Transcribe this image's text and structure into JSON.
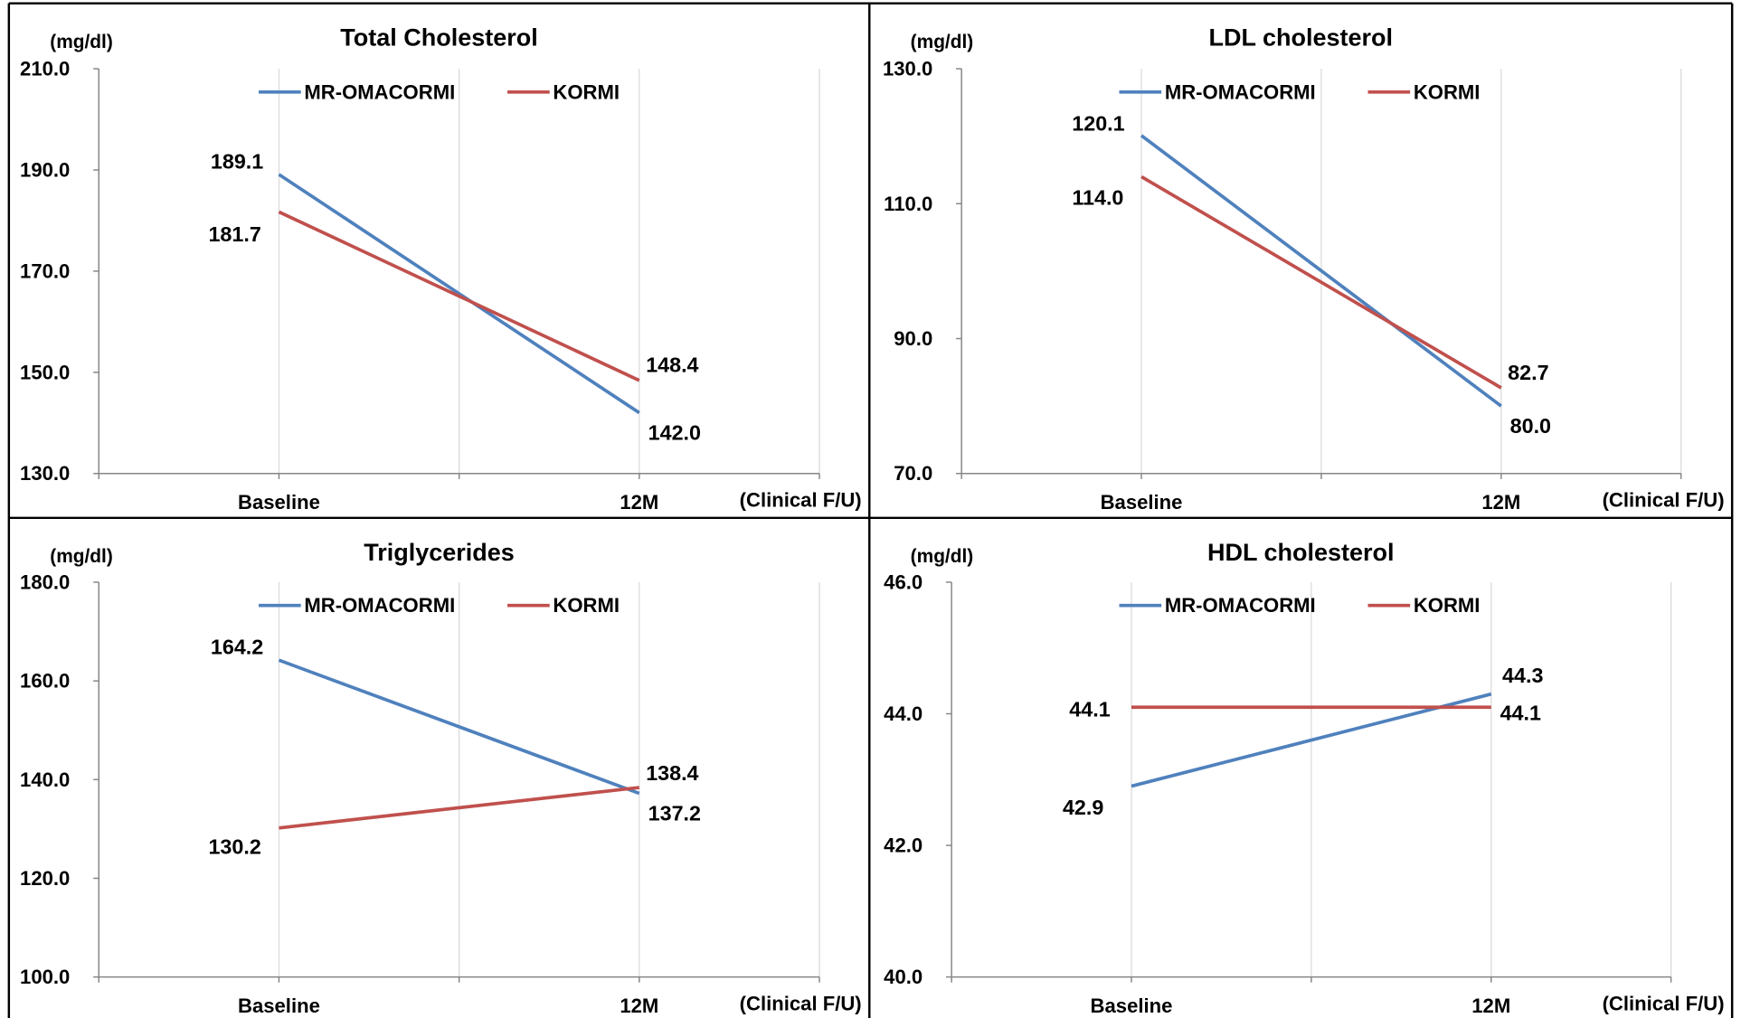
{
  "chart_data": [
    {
      "type": "line",
      "title": "Total Cholesterol",
      "ylabel": "(mg/dl)",
      "xlabel": "(Clinical F/U)",
      "categories": [
        "Baseline",
        "12M"
      ],
      "ylim": [
        130,
        210
      ],
      "yticks": [
        "210.0",
        "190.0",
        "170.0",
        "150.0",
        "130.0"
      ],
      "legend": "top",
      "xgrid": true,
      "ygrid": false,
      "series": [
        {
          "name": "MR-OMACORMI",
          "color": "#4f81bd",
          "values": [
            189.1,
            142.0
          ],
          "labels": [
            "189.1",
            "142.0"
          ]
        },
        {
          "name": "KORMI",
          "color": "#c0504d",
          "values": [
            181.7,
            148.4
          ],
          "labels": [
            "181.7",
            "148.4"
          ]
        }
      ]
    },
    {
      "type": "line",
      "title": "LDL cholesterol",
      "ylabel": "(mg/dl)",
      "xlabel": "(Clinical F/U)",
      "categories": [
        "Baseline",
        "12M"
      ],
      "ylim": [
        70,
        130
      ],
      "yticks": [
        "130.0",
        "110.0",
        "90.0",
        "70.0"
      ],
      "legend": "top",
      "xgrid": true,
      "ygrid": false,
      "series": [
        {
          "name": "MR-OMACORMI",
          "color": "#4f81bd",
          "values": [
            120.1,
            80.0
          ],
          "labels": [
            "120.1",
            "80.0"
          ]
        },
        {
          "name": "KORMI",
          "color": "#c0504d",
          "values": [
            114.0,
            82.7
          ],
          "labels": [
            "114.0",
            "82.7"
          ]
        }
      ]
    },
    {
      "type": "line",
      "title": "Triglycerides",
      "ylabel": "(mg/dl)",
      "xlabel": "(Clinical F/U)",
      "categories": [
        "Baseline",
        "12M"
      ],
      "ylim": [
        100,
        180
      ],
      "yticks": [
        "180.0",
        "160.0",
        "140.0",
        "120.0",
        "100.0"
      ],
      "legend": "top",
      "xgrid": true,
      "ygrid": false,
      "series": [
        {
          "name": "MR-OMACORMI",
          "color": "#4f81bd",
          "values": [
            164.2,
            137.2
          ],
          "labels": [
            "164.2",
            "137.2"
          ]
        },
        {
          "name": "KORMI",
          "color": "#c0504d",
          "values": [
            130.2,
            138.4
          ],
          "labels": [
            "130.2",
            "138.4"
          ]
        }
      ]
    },
    {
      "type": "line",
      "title": "HDL cholesterol",
      "ylabel": "(mg/dl)",
      "xlabel": "(Clinical F/U)",
      "categories": [
        "Baseline",
        "12M"
      ],
      "ylim": [
        40,
        46
      ],
      "yticks": [
        "46.0",
        "44.0",
        "42.0",
        "40.0"
      ],
      "legend": "top",
      "xgrid": true,
      "ygrid": false,
      "series": [
        {
          "name": "MR-OMACORMI",
          "color": "#4f81bd",
          "values": [
            42.9,
            44.3
          ],
          "labels": [
            "42.9",
            "44.3"
          ]
        },
        {
          "name": "KORMI",
          "color": "#c0504d",
          "values": [
            44.1,
            44.1
          ],
          "labels": [
            "44.1",
            "44.1"
          ]
        }
      ]
    }
  ]
}
